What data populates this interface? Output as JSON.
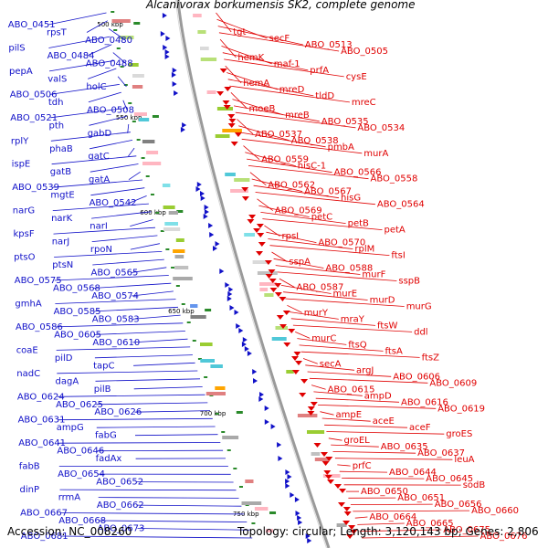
{
  "title": "Alcanivorax borkumensis SK2, complete genome",
  "accession": "Accession: NC_008260",
  "stats": "Topology: circular; Length: 3,120,143 bp; Genes: 2,806",
  "colors": {
    "forward": "#1010c8",
    "reverse": "#e00000",
    "backbone": "#9a9a9a",
    "marker": "#2a8a2a"
  },
  "ruler": [
    "500 kbp",
    "550 kbp",
    "600 kbp",
    "650 kbp",
    "700 kbp",
    "750 kbp"
  ],
  "forward_genes": [
    "ABO_0451",
    "rpsT",
    "ABO_0480",
    "pilS",
    "ABO_0484",
    "ABO_0488",
    "pepA",
    "valS",
    "holC",
    "ABO_0506",
    "tdh",
    "ABO_0508",
    "ABO_0521",
    "pth",
    "gabD",
    "rplY",
    "phaB",
    "gatC",
    "ispE",
    "gatB",
    "gatA",
    "ABO_0539",
    "mgtE",
    "ABO_0542",
    "narG",
    "narK",
    "narI",
    "kpsF",
    "narJ",
    "rpoN",
    "ptsO",
    "ptsN",
    "ABO_0565",
    "ABO_0575",
    "ABO_0568",
    "ABO_0574",
    "gmhA",
    "ABO_0585",
    "ABO_0583",
    "ABO_0586",
    "ABO_0605",
    "ABO_0610",
    "coaE",
    "pilD",
    "tapC",
    "nadC",
    "dagA",
    "pilB",
    "ABO_0624",
    "ABO_0625",
    "ABO_0626",
    "ABO_0631",
    "ampG",
    "fabG",
    "ABO_0641",
    "ABO_0646",
    "fadAx",
    "fabB",
    "ABO_0654",
    "ABO_0652",
    "dinP",
    "rrmA",
    "ABO_0662",
    "ABO_0667",
    "ABO_0668",
    "ABO_0673",
    "ABO_0681"
  ],
  "reverse_genes": [
    "tgt",
    "secF",
    "ABO_0513",
    "ABO_0505",
    "hemK",
    "maf-1",
    "prfA",
    "cysE",
    "hemA",
    "mreD",
    "tldD",
    "mreC",
    "moeB",
    "mreB",
    "ABO_0535",
    "ABO_0534",
    "ABO_0537",
    "ABO_0538",
    "pmbA",
    "murA",
    "ABO_0559",
    "hisC-1",
    "ABO_0566",
    "ABO_0558",
    "ABO_0562",
    "ABO_0567",
    "hisG",
    "ABO_0564",
    "ABO_0569",
    "petC",
    "petB",
    "petA",
    "rpsI",
    "ABO_0570",
    "rplM",
    "ftsI",
    "sspA",
    "ABO_0588",
    "murF",
    "sspB",
    "ABO_0587",
    "murE",
    "murD",
    "murG",
    "murY",
    "mraY",
    "ftsW",
    "ddl",
    "murC",
    "ftsQ",
    "ftsA",
    "ftsZ",
    "secA",
    "argJ",
    "ABO_0606",
    "ABO_0609",
    "ABO_0615",
    "ampD",
    "ABO_0616",
    "ABO_0619",
    "ampE",
    "aceE",
    "aceF",
    "groES",
    "groEL",
    "ABO_0635",
    "ABO_0637",
    "leuA",
    "prfC",
    "ABO_0644",
    "ABO_0645",
    "sodB",
    "ABO_0650",
    "ABO_0651",
    "ABO_0656",
    "ABO_0660",
    "ABO_0664",
    "ABO_0665",
    "ABO_0675",
    "ABO_0676"
  ]
}
